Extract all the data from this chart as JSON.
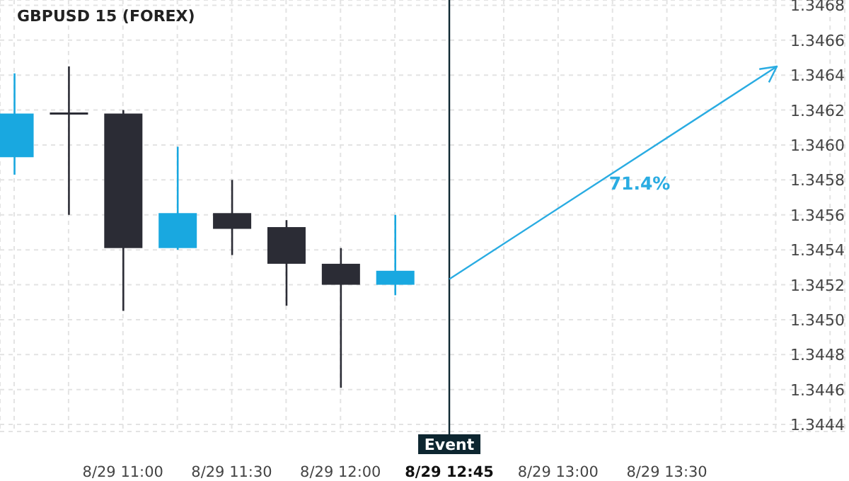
{
  "chart_data": {
    "type": "candlestick",
    "title": "GBPUSD 15 (FOREX)",
    "categories": [
      null,
      null,
      "8/29 11:00",
      null,
      "8/29 11:30",
      null,
      "8/29 12:00",
      null,
      "8/29 12:45",
      null,
      "8/29 13:00",
      null,
      "8/29 13:30",
      null,
      null,
      null
    ],
    "ohlc": [
      [
        1.34593,
        1.34641,
        1.34583,
        1.34618
      ],
      [
        1.34618,
        1.34645,
        1.3456,
        1.34618
      ],
      [
        1.34618,
        1.3462,
        1.34505,
        1.34541
      ],
      [
        1.34541,
        1.34599,
        1.3454,
        1.34561
      ],
      [
        1.34561,
        1.3458,
        1.34537,
        1.34552
      ],
      [
        1.34553,
        1.34557,
        1.34508,
        1.34532
      ],
      [
        1.34532,
        1.34541,
        1.34461,
        1.3452
      ],
      [
        1.3452,
        1.3456,
        1.34514,
        1.34528
      ],
      null,
      null,
      null,
      null,
      null,
      null,
      null,
      null
    ],
    "colors": [
      "#19a8e0",
      "#2b2c35",
      "#2b2c35",
      "#19a8e0",
      "#2b2c35",
      "#2b2c35",
      "#2b2c35",
      "#19a8e0",
      null,
      null,
      null,
      null,
      null,
      null,
      null,
      null
    ],
    "ylim": [
      1.34436,
      1.34683
    ],
    "yticks": [
      1.3444,
      1.3446,
      1.3448,
      {
        "value": 1.345,
        "label": "1.3450"
      },
      1.3452,
      1.3454,
      1.3456,
      1.3458,
      {
        "value": 1.346,
        "label": "1.3460"
      },
      1.3462,
      1.3464,
      1.3466,
      1.3468
    ],
    "grid": true,
    "ref_lines": [
      {
        "axis": "x",
        "value": "8/29 12:45",
        "label": "Event",
        "color": "#0d2630"
      }
    ],
    "annotations": [
      "71.4%"
    ]
  }
}
